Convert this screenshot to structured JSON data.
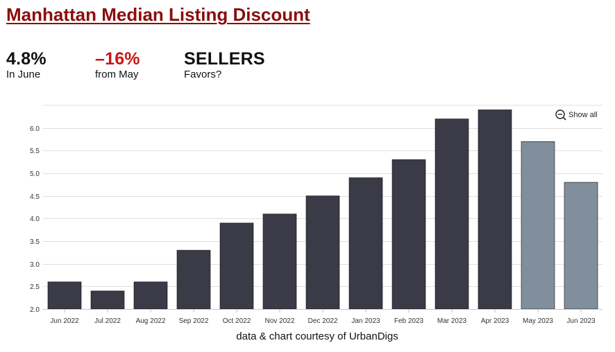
{
  "title": "Manhattan Median Listing Discount",
  "stats": [
    {
      "value": "4.8%",
      "label": "In June",
      "color": "#111111"
    },
    {
      "value": "–16%",
      "label": "from May",
      "color": "#cc1414"
    },
    {
      "value": "SELLERS",
      "label": "Favors?",
      "color": "#111111"
    }
  ],
  "credit": "data & chart courtesy of UrbanDigs",
  "colors": {
    "title": "#8b0d0d",
    "negative": "#cc1414",
    "bar_dark": "#3b3a47",
    "bar_light": "#818f9c"
  },
  "chart_data": {
    "type": "bar",
    "categories": [
      "Jun 2022",
      "Jul 2022",
      "Aug 2022",
      "Sep 2022",
      "Oct 2022",
      "Nov 2022",
      "Dec 2022",
      "Jan 2023",
      "Feb 2023",
      "Mar 2023",
      "Apr 2023",
      "May 2023",
      "Jun 2023"
    ],
    "values": [
      2.6,
      2.4,
      2.6,
      3.3,
      3.9,
      4.1,
      4.5,
      4.9,
      5.3,
      6.2,
      6.4,
      5.7,
      4.8
    ],
    "highlight": [
      false,
      false,
      false,
      false,
      false,
      false,
      false,
      false,
      false,
      false,
      false,
      true,
      true
    ],
    "ylim": [
      2.0,
      6.5
    ],
    "yticks": [
      "2.0",
      "2.5",
      "3.0",
      "3.5",
      "4.0",
      "4.5",
      "5.0",
      "5.5",
      "6.0"
    ],
    "title": "",
    "xlabel": "",
    "ylabel": "",
    "grid": true,
    "control": {
      "label": "Show all",
      "icon": "zoom-out-icon"
    }
  }
}
